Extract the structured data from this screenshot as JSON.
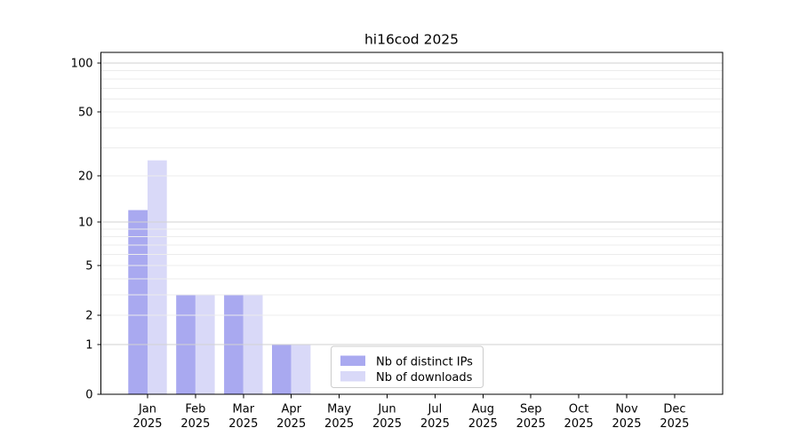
{
  "chart_data": {
    "type": "bar",
    "title": "hi16cod 2025",
    "xlabel": "",
    "ylabel": "",
    "categories": [
      "Jan 2025",
      "Feb 2025",
      "Mar 2025",
      "Apr 2025",
      "May 2025",
      "Jun 2025",
      "Jul 2025",
      "Aug 2025",
      "Sep 2025",
      "Oct 2025",
      "Nov 2025",
      "Dec 2025"
    ],
    "series": [
      {
        "name": "Nb of distinct IPs",
        "color": "#a9a9f0",
        "values": [
          12,
          3,
          3,
          1,
          0,
          0,
          0,
          0,
          0,
          0,
          0,
          0
        ]
      },
      {
        "name": "Nb of downloads",
        "color": "#d9d9f8",
        "values": [
          25,
          3,
          3,
          1,
          0,
          0,
          0,
          0,
          0,
          0,
          0,
          0
        ]
      }
    ],
    "yscale": "log1p",
    "yticks": [
      0,
      1,
      2,
      5,
      10,
      20,
      50,
      100
    ],
    "grid": "on",
    "grid_major": [
      1,
      10,
      100
    ],
    "grid_minor": [
      2,
      3,
      4,
      5,
      6,
      7,
      8,
      9,
      20,
      30,
      40,
      50,
      60,
      70,
      80,
      90
    ],
    "ylim": [
      0,
      116
    ],
    "legend_position": "lower center",
    "colors": {
      "grid_major": "#d2d2d2",
      "grid_minor": "#ececec",
      "axis": "#000000",
      "legend_border": "#cccccc"
    }
  }
}
